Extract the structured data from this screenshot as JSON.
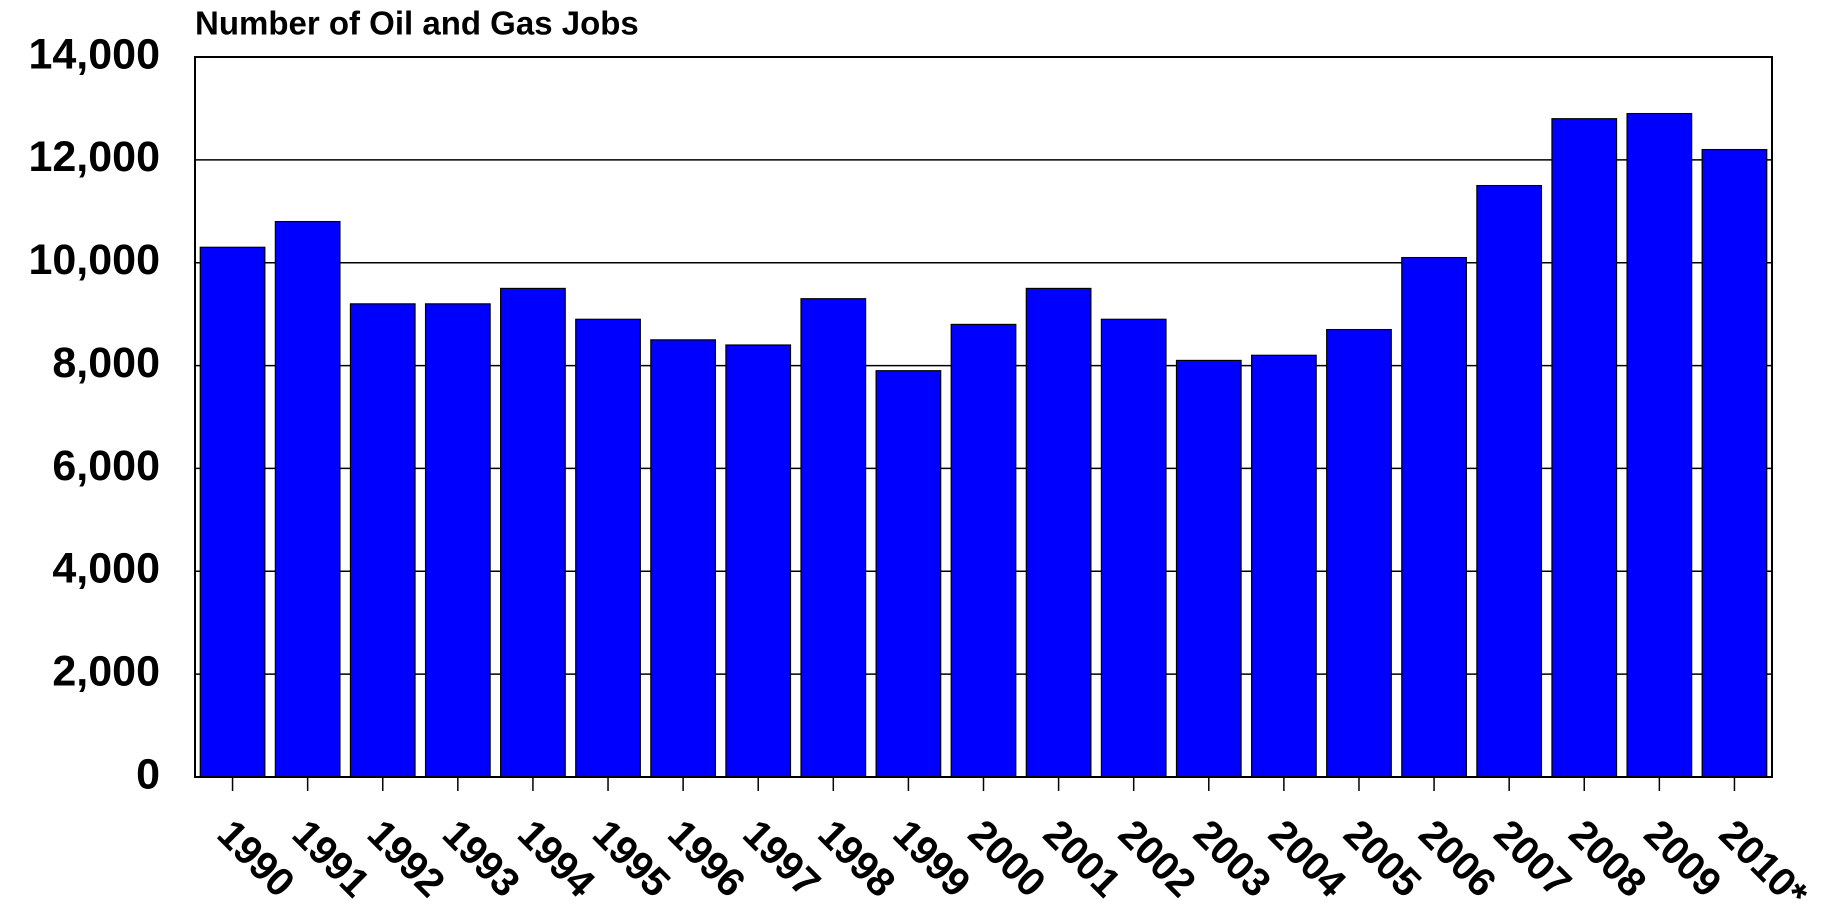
{
  "chart_data": {
    "type": "bar",
    "title": "Number of Oil and Gas Jobs",
    "categories": [
      "1990",
      "1991",
      "1992",
      "1993",
      "1994",
      "1995",
      "1996",
      "1997",
      "1998",
      "1999",
      "2000",
      "2001",
      "2002",
      "2003",
      "2004",
      "2005",
      "2006",
      "2007",
      "2008",
      "2009",
      "2010*"
    ],
    "values": [
      10300,
      10800,
      9200,
      9200,
      9500,
      8900,
      8500,
      8400,
      9300,
      7900,
      8800,
      9500,
      8900,
      8100,
      8200,
      8700,
      10100,
      11500,
      12800,
      12900,
      12200
    ],
    "color": "#0000ff",
    "ylim": [
      0,
      14000
    ],
    "yticks": [
      0,
      {
        "value": 2000,
        "label": "2,000"
      },
      {
        "value": 4000,
        "label": "4,000"
      },
      {
        "value": 6000,
        "label": "6,000"
      },
      {
        "value": 8000,
        "label": "8,000"
      },
      {
        "value": 10000,
        "label": "10,000"
      },
      {
        "value": 12000,
        "label": "12,000"
      },
      {
        "value": 14000,
        "label": "14,000"
      }
    ],
    "grid": true
  }
}
